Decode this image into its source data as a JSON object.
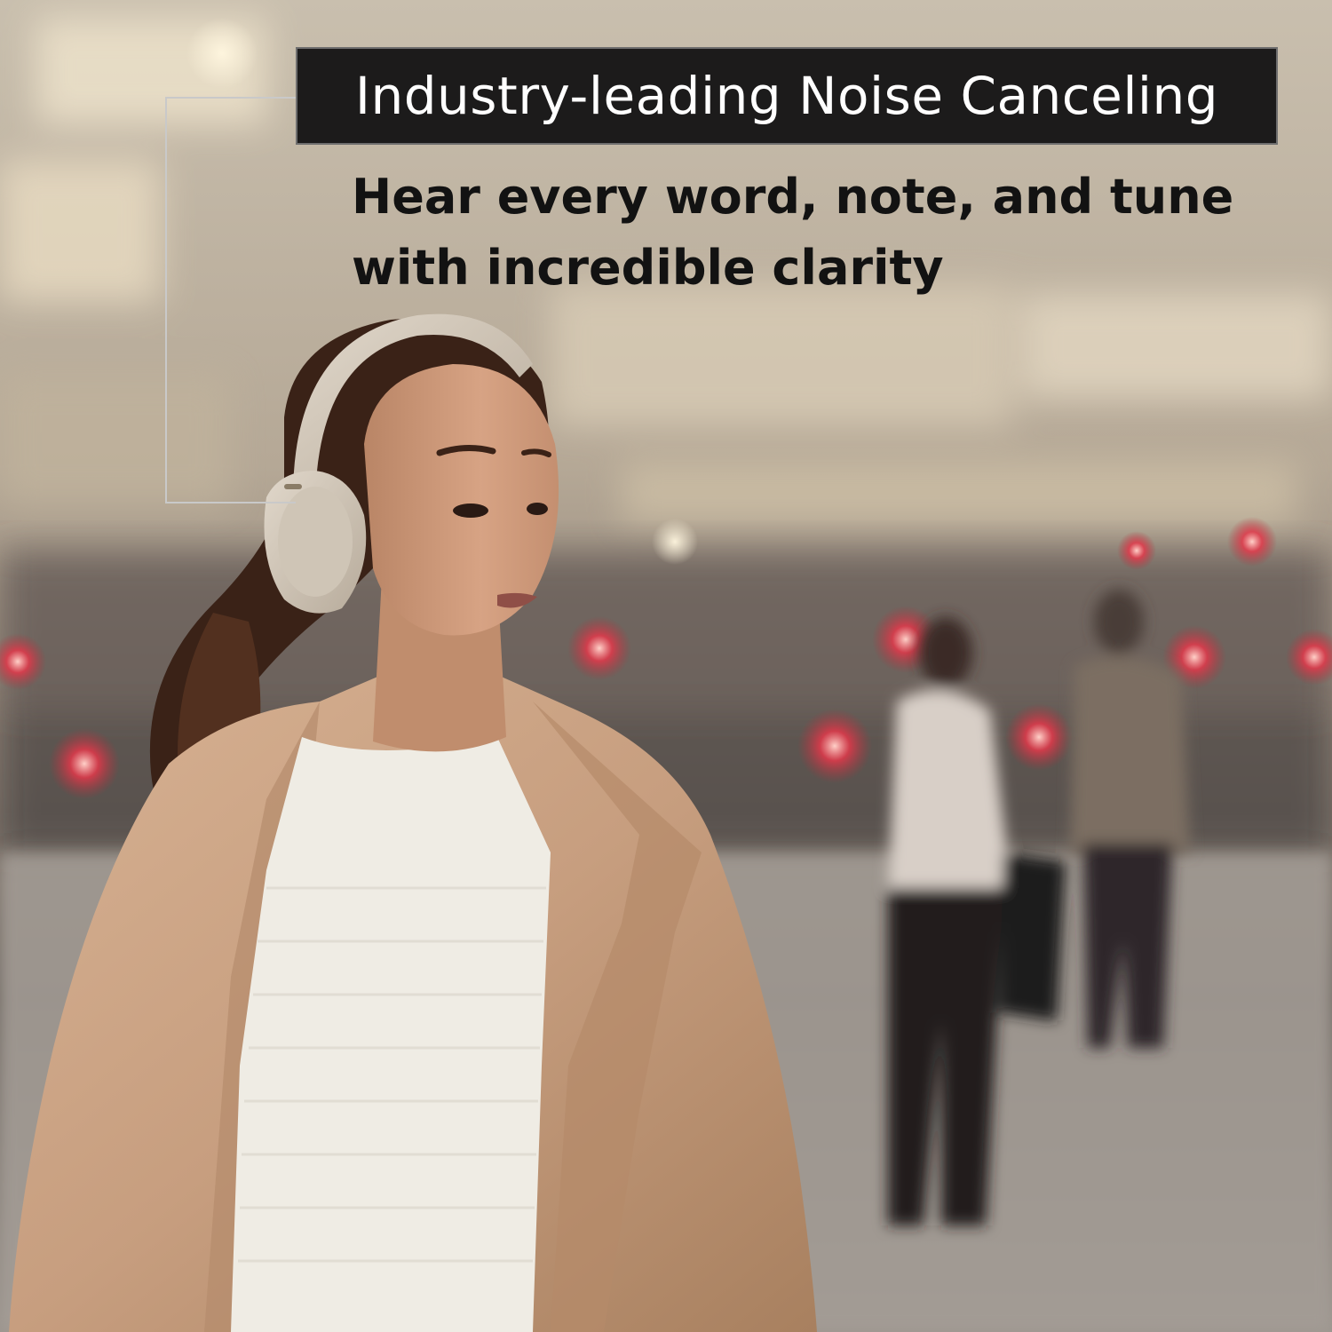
{
  "headline": {
    "title": "Industry-leading Noise Canceling"
  },
  "tagline": {
    "line1": "Hear every word, note, and tune",
    "line2": "with incredible clarity"
  },
  "colors": {
    "banner_bg": "#1c1b1b",
    "banner_text": "#ffffff",
    "tagline_text": "#121212",
    "callout_line": "#c9c9c9"
  }
}
